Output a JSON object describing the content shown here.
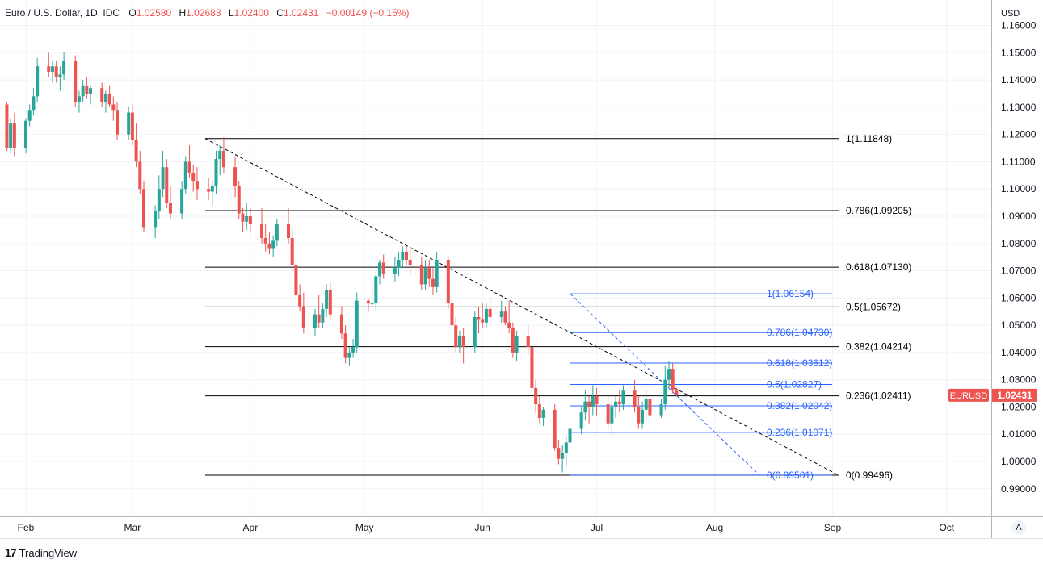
{
  "header": {
    "symbol": "Euro / U.S. Dollar, 1D, IDC",
    "o_label": "O",
    "o_value": "1.02580",
    "h_label": "H",
    "h_value": "1.02683",
    "l_label": "L",
    "l_value": "1.02400",
    "c_label": "C",
    "c_value": "1.02431",
    "change": "−0.00149 (−0.15%)"
  },
  "axis": {
    "currency": "USD"
  },
  "price_tag": {
    "symbol": "EURUSD",
    "price": "1.02431"
  },
  "brand": {
    "logo": "17",
    "name": "TradingView"
  },
  "auto_button": "A",
  "colors": {
    "up": "#26a69a",
    "down": "#ef5350",
    "fib_long": "#000000",
    "fib_short": "#2962ff",
    "grid": "#f0f3fa"
  },
  "chart_data": {
    "type": "candlestick",
    "ylim": [
      0.985,
      1.165
    ],
    "y_ticks": [
      "1.16000",
      "1.15000",
      "1.14000",
      "1.13000",
      "1.12000",
      "1.11000",
      "1.10000",
      "1.09000",
      "1.08000",
      "1.07000",
      "1.06000",
      "1.05000",
      "1.04000",
      "1.03000",
      "1.02000",
      "1.01000",
      "1.00000",
      "0.99000"
    ],
    "x_ticks": [
      {
        "label": "Feb",
        "day": 0
      },
      {
        "label": "Mar",
        "day": 28
      },
      {
        "label": "Apr",
        "day": 59
      },
      {
        "label": "May",
        "day": 89
      },
      {
        "label": "Jun",
        "day": 120
      },
      {
        "label": "Jul",
        "day": 150
      },
      {
        "label": "Aug",
        "day": 181
      },
      {
        "label": "Sep",
        "day": 212
      },
      {
        "label": "Oct",
        "day": 242
      }
    ],
    "candles": [
      [
        -5,
        1.131,
        1.132,
        1.114,
        1.115
      ],
      [
        -4,
        1.115,
        1.126,
        1.113,
        1.124
      ],
      [
        -3,
        1.124,
        1.128,
        1.112,
        1.115
      ],
      [
        0,
        1.115,
        1.126,
        1.113,
        1.125
      ],
      [
        1,
        1.125,
        1.131,
        1.123,
        1.129
      ],
      [
        2,
        1.129,
        1.137,
        1.127,
        1.134
      ],
      [
        3,
        1.134,
        1.148,
        1.132,
        1.145
      ],
      [
        6,
        1.145,
        1.15,
        1.141,
        1.143
      ],
      [
        7,
        1.143,
        1.147,
        1.139,
        1.145
      ],
      [
        8,
        1.145,
        1.147,
        1.139,
        1.141
      ],
      [
        9,
        1.141,
        1.145,
        1.136,
        1.142
      ],
      [
        10,
        1.142,
        1.15,
        1.14,
        1.147
      ],
      [
        13,
        1.147,
        1.149,
        1.13,
        1.132
      ],
      [
        14,
        1.132,
        1.136,
        1.128,
        1.134
      ],
      [
        15,
        1.134,
        1.14,
        1.132,
        1.138
      ],
      [
        16,
        1.138,
        1.141,
        1.133,
        1.135
      ],
      [
        17,
        1.135,
        1.138,
        1.131,
        1.137
      ],
      [
        20,
        1.137,
        1.139,
        1.13,
        1.132
      ],
      [
        21,
        1.132,
        1.136,
        1.128,
        1.135
      ],
      [
        22,
        1.135,
        1.138,
        1.13,
        1.131
      ],
      [
        23,
        1.131,
        1.134,
        1.125,
        1.129
      ],
      [
        24,
        1.129,
        1.132,
        1.118,
        1.12
      ],
      [
        27,
        1.12,
        1.13,
        1.118,
        1.128
      ],
      [
        28,
        1.128,
        1.131,
        1.116,
        1.118
      ],
      [
        29,
        1.118,
        1.124,
        1.108,
        1.11
      ],
      [
        30,
        1.11,
        1.114,
        1.098,
        1.1
      ],
      [
        31,
        1.1,
        1.103,
        1.084,
        1.086
      ],
      [
        34,
        1.086,
        1.094,
        1.082,
        1.092
      ],
      [
        35,
        1.092,
        1.105,
        1.089,
        1.1
      ],
      [
        36,
        1.1,
        1.114,
        1.097,
        1.108
      ],
      [
        37,
        1.108,
        1.111,
        1.093,
        1.095
      ],
      [
        38,
        1.095,
        1.101,
        1.089,
        1.091
      ],
      [
        41,
        1.091,
        1.103,
        1.089,
        1.1
      ],
      [
        42,
        1.1,
        1.112,
        1.098,
        1.11
      ],
      [
        43,
        1.11,
        1.116,
        1.104,
        1.106
      ],
      [
        44,
        1.106,
        1.109,
        1.099,
        1.103
      ],
      [
        45,
        1.103,
        1.108,
        1.096,
        1.1
      ],
      [
        48,
        1.1,
        1.104,
        1.096,
        1.099
      ],
      [
        49,
        1.099,
        1.103,
        1.094,
        1.101
      ],
      [
        50,
        1.101,
        1.114,
        1.098,
        1.111
      ],
      [
        51,
        1.111,
        1.116,
        1.105,
        1.114
      ],
      [
        52,
        1.114,
        1.119,
        1.106,
        1.108
      ],
      [
        55,
        1.108,
        1.112,
        1.097,
        1.101
      ],
      [
        56,
        1.101,
        1.103,
        1.089,
        1.091
      ],
      [
        57,
        1.091,
        1.093,
        1.084,
        1.088
      ],
      [
        58,
        1.088,
        1.095,
        1.085,
        1.09
      ],
      [
        59,
        1.09,
        1.093,
        1.084,
        1.087
      ],
      [
        62,
        1.087,
        1.093,
        1.08,
        1.082
      ],
      [
        63,
        1.082,
        1.087,
        1.077,
        1.08
      ],
      [
        64,
        1.08,
        1.084,
        1.076,
        1.078
      ],
      [
        65,
        1.078,
        1.083,
        1.075,
        1.081
      ],
      [
        66,
        1.081,
        1.089,
        1.079,
        1.087
      ],
      [
        69,
        1.087,
        1.093,
        1.08,
        1.082
      ],
      [
        70,
        1.082,
        1.086,
        1.07,
        1.072
      ],
      [
        71,
        1.072,
        1.074,
        1.058,
        1.061
      ],
      [
        72,
        1.061,
        1.065,
        1.055,
        1.057
      ],
      [
        73,
        1.057,
        1.062,
        1.047,
        1.049
      ],
      [
        76,
        1.049,
        1.056,
        1.046,
        1.054
      ],
      [
        77,
        1.054,
        1.061,
        1.049,
        1.051
      ],
      [
        78,
        1.051,
        1.058,
        1.049,
        1.056
      ],
      [
        79,
        1.056,
        1.065,
        1.053,
        1.063
      ],
      [
        80,
        1.063,
        1.066,
        1.052,
        1.054
      ],
      [
        83,
        1.054,
        1.057,
        1.045,
        1.047
      ],
      [
        84,
        1.047,
        1.05,
        1.036,
        1.038
      ],
      [
        85,
        1.038,
        1.042,
        1.035,
        1.04
      ],
      [
        86,
        1.04,
        1.045,
        1.038,
        1.042
      ],
      [
        87,
        1.042,
        1.062,
        1.04,
        1.059
      ],
      [
        90,
        1.059,
        1.06,
        1.055,
        1.058
      ],
      [
        91,
        1.058,
        1.063,
        1.056,
        1.058
      ],
      [
        92,
        1.058,
        1.07,
        1.055,
        1.068
      ],
      [
        93,
        1.068,
        1.074,
        1.065,
        1.073
      ],
      [
        94,
        1.073,
        1.076,
        1.067,
        1.069
      ],
      [
        97,
        1.069,
        1.075,
        1.066,
        1.071
      ],
      [
        98,
        1.071,
        1.077,
        1.068,
        1.074
      ],
      [
        99,
        1.074,
        1.079,
        1.071,
        1.077
      ],
      [
        100,
        1.077,
        1.079,
        1.072,
        1.074
      ],
      [
        101,
        1.074,
        1.078,
        1.069,
        1.072
      ],
      [
        104,
        1.072,
        1.075,
        1.063,
        1.065
      ],
      [
        105,
        1.065,
        1.074,
        1.063,
        1.071
      ],
      [
        106,
        1.071,
        1.074,
        1.064,
        1.067
      ],
      [
        107,
        1.067,
        1.071,
        1.061,
        1.064
      ],
      [
        108,
        1.064,
        1.077,
        1.062,
        1.074
      ],
      [
        111,
        1.074,
        1.075,
        1.056,
        1.058
      ],
      [
        112,
        1.058,
        1.061,
        1.048,
        1.05
      ],
      [
        113,
        1.05,
        1.053,
        1.04,
        1.042
      ],
      [
        114,
        1.042,
        1.048,
        1.04,
        1.046
      ],
      [
        115,
        1.046,
        1.049,
        1.036,
        1.042
      ],
      [
        118,
        1.042,
        1.055,
        1.04,
        1.053
      ],
      [
        119,
        1.053,
        1.057,
        1.047,
        1.052
      ],
      [
        120,
        1.052,
        1.058,
        1.049,
        1.051
      ],
      [
        121,
        1.051,
        1.058,
        1.049,
        1.056
      ],
      [
        122,
        1.056,
        1.06,
        1.05,
        1.053
      ],
      [
        125,
        1.053,
        1.059,
        1.051,
        1.055
      ],
      [
        126,
        1.055,
        1.057,
        1.05,
        1.051
      ],
      [
        127,
        1.051,
        1.059,
        1.047,
        1.049
      ],
      [
        128,
        1.049,
        1.051,
        1.038,
        1.04
      ],
      [
        129,
        1.04,
        1.048,
        1.037,
        1.046
      ],
      [
        132,
        1.046,
        1.05,
        1.039,
        1.042
      ],
      [
        133,
        1.042,
        1.044,
        1.025,
        1.027
      ],
      [
        134,
        1.027,
        1.03,
        1.018,
        1.021
      ],
      [
        135,
        1.021,
        1.024,
        1.014,
        1.016
      ],
      [
        136,
        1.016,
        1.02,
        1.013,
        1.019
      ],
      [
        139,
        1.019,
        1.021,
        1.004,
        1.005
      ],
      [
        140,
        1.005,
        1.008,
        0.999,
        1.001
      ],
      [
        141,
        1.001,
        1.006,
        0.996,
        1.003
      ],
      [
        142,
        1.003,
        1.009,
        0.998,
        1.007
      ],
      [
        143,
        1.007,
        1.015,
        1.004,
        1.012
      ],
      [
        146,
        1.012,
        1.02,
        1.01,
        1.018
      ],
      [
        147,
        1.018,
        1.026,
        1.015,
        1.022
      ],
      [
        148,
        1.022,
        1.024,
        1.014,
        1.02
      ],
      [
        149,
        1.02,
        1.028,
        1.017,
        1.024
      ],
      [
        150,
        1.024,
        1.027,
        1.017,
        1.021
      ],
      [
        153,
        1.021,
        1.024,
        1.012,
        1.014
      ],
      [
        154,
        1.014,
        1.023,
        1.01,
        1.02
      ],
      [
        155,
        1.02,
        1.024,
        1.016,
        1.022
      ],
      [
        156,
        1.022,
        1.026,
        1.018,
        1.021
      ],
      [
        157,
        1.021,
        1.028,
        1.019,
        1.026
      ],
      [
        160,
        1.026,
        1.03,
        1.018,
        1.02
      ],
      [
        161,
        1.02,
        1.024,
        1.012,
        1.014
      ],
      [
        162,
        1.014,
        1.022,
        1.012,
        1.019
      ],
      [
        163,
        1.019,
        1.026,
        1.015,
        1.023
      ],
      [
        164,
        1.023,
        1.026,
        1.015,
        1.017
      ],
      [
        167,
        1.017,
        1.023,
        1.016,
        1.021
      ],
      [
        168,
        1.021,
        1.035,
        1.019,
        1.03
      ],
      [
        169,
        1.03,
        1.037,
        1.027,
        1.034
      ],
      [
        170,
        1.034,
        1.036,
        1.025,
        1.026
      ],
      [
        171,
        1.026,
        1.027,
        1.024,
        1.0243
      ]
    ],
    "fib_long": {
      "start": {
        "day": 38,
        "price": 1.11848
      },
      "end": {
        "day": 152,
        "price": 0.99496
      },
      "line_from_day": 38,
      "line_to_day": 152,
      "levels": [
        {
          "ratio": "1",
          "price": 1.11848,
          "label": "1(1.11848)"
        },
        {
          "ratio": "0.786",
          "price": 1.09205,
          "label": "0.786(1.09205)"
        },
        {
          "ratio": "0.618",
          "price": 1.0713,
          "label": "0.618(1.07130)"
        },
        {
          "ratio": "0.5",
          "price": 1.05672,
          "label": "0.5(1.05672)"
        },
        {
          "ratio": "0.382",
          "price": 1.04214,
          "label": "0.382(1.04214)"
        },
        {
          "ratio": "0.236",
          "price": 1.02411,
          "label": "0.236(1.02411)"
        },
        {
          "ratio": "0",
          "price": 0.99496,
          "label": "0(0.99496)"
        }
      ]
    },
    "fib_short": {
      "start": {
        "day": 106,
        "price": 1.06154
      },
      "end": {
        "day": 143,
        "price": 0.99501
      },
      "line_from_day": 106,
      "line_to_day": 143,
      "levels": [
        {
          "ratio": "1",
          "price": 1.06154,
          "label": "1(1.06154)"
        },
        {
          "ratio": "0.786",
          "price": 1.0473,
          "label": "0.786(1.04730)"
        },
        {
          "ratio": "0.618",
          "price": 1.03612,
          "label": "0.618(1.03612)"
        },
        {
          "ratio": "0.5",
          "price": 1.02827,
          "label": "0.5(1.02827)"
        },
        {
          "ratio": "0.382",
          "price": 1.02042,
          "label": "0.382(1.02042)"
        },
        {
          "ratio": "0.236",
          "price": 1.01071,
          "label": "0.236(1.01071)"
        },
        {
          "ratio": "0",
          "price": 0.99501,
          "label": "0(0.99501)"
        }
      ]
    },
    "last_price": 1.02431
  }
}
